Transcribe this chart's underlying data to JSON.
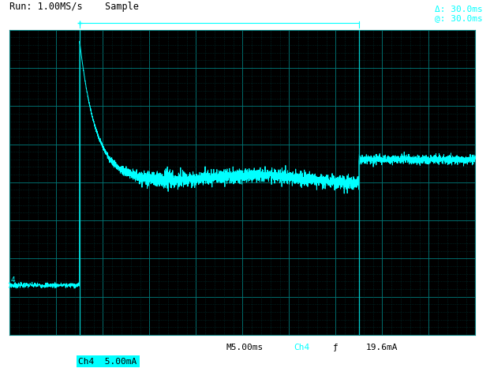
{
  "bg_color": "#000000",
  "outer_bg": "#1a1a1a",
  "grid_color": "#007777",
  "dot_color": "#004444",
  "signal_color": "#00FFFF",
  "top_label_color": "#000000",
  "cursor_color": "#00CCCC",
  "title_text": "Run: 1.00MS/s    Sample",
  "bottom_text_center": "M5.00ms",
  "bottom_text_ch": "Ch4",
  "bottom_text_sym": "ƒ",
  "bottom_text_trig": "19.6mA",
  "bottom_ch4_label": "Ch4  5.00mA",
  "delta_text": "Δ: 30.0ms",
  "at_text": "@: 30.0ms",
  "n_cols": 10,
  "n_rows": 8,
  "xlim": [
    0,
    10
  ],
  "ylim": [
    0,
    8
  ],
  "cursor1_x": 1.5,
  "cursor2_x": 7.5,
  "channel_marker_y": 1.3,
  "signal_spike_x": 1.5,
  "steady_low_y": 4.05,
  "steady_high_y": 4.6,
  "decay_end_x": 3.5,
  "settle_x": 7.5,
  "spike_top_y": 7.7,
  "pre_signal_y": 1.3
}
